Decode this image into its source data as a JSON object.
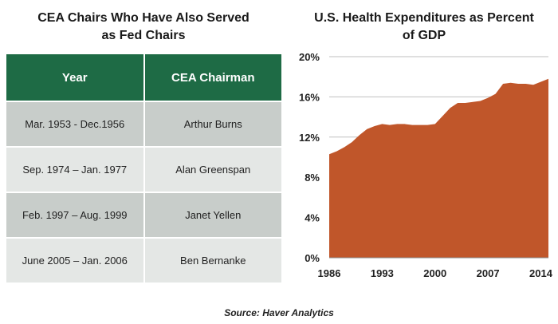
{
  "table": {
    "title_line1": "CEA Chairs Who Have Also Served",
    "title_line2": "as Fed Chairs",
    "headers": [
      "Year",
      "CEA Chairman"
    ],
    "rows": [
      {
        "year": "Mar. 1953 - Dec.1956",
        "chairman": "Arthur Burns"
      },
      {
        "year": "Sep. 1974 – Jan. 1977",
        "chairman": "Alan Greenspan"
      },
      {
        "year": "Feb. 1997 – Aug. 1999",
        "chairman": "Janet Yellen"
      },
      {
        "year": "June 2005 – Jan. 2006",
        "chairman": "Ben Bernanke"
      }
    ]
  },
  "chart_data": {
    "type": "area",
    "title": "U.S. Health Expenditures as Percent of GDP",
    "title_line1": "U.S. Health Expenditures as Percent",
    "title_line2": "of GDP",
    "xlabel": "",
    "ylabel": "",
    "x": [
      1986,
      1987,
      1988,
      1989,
      1990,
      1991,
      1992,
      1993,
      1994,
      1995,
      1996,
      1997,
      1998,
      1999,
      2000,
      2001,
      2002,
      2003,
      2004,
      2005,
      2006,
      2007,
      2008,
      2009,
      2010,
      2011,
      2012,
      2013,
      2014,
      2015
    ],
    "values": [
      10.3,
      10.6,
      11.0,
      11.5,
      12.2,
      12.8,
      13.1,
      13.3,
      13.2,
      13.3,
      13.3,
      13.2,
      13.2,
      13.2,
      13.3,
      14.1,
      14.9,
      15.4,
      15.4,
      15.5,
      15.6,
      15.9,
      16.3,
      17.3,
      17.4,
      17.3,
      17.3,
      17.2,
      17.5,
      17.8
    ],
    "xlim": [
      1986,
      2015
    ],
    "ylim": [
      0,
      20
    ],
    "x_ticks": [
      1986,
      1993,
      2000,
      2007,
      2014
    ],
    "x_tick_labels": [
      "1986",
      "1993",
      "2000",
      "2007",
      "2014"
    ],
    "y_ticks": [
      0,
      4,
      8,
      12,
      16,
      20
    ],
    "y_tick_labels": [
      "0%",
      "4%",
      "8%",
      "12%",
      "16%",
      "20%"
    ],
    "grid": true,
    "area_color": "#c0562a",
    "grid_color": "#bfbfbf"
  },
  "source": "Source: Haver Analytics",
  "colors": {
    "header_green": "#1e6b45",
    "row_dark": "#c8cdca",
    "row_light": "#e4e7e5"
  }
}
